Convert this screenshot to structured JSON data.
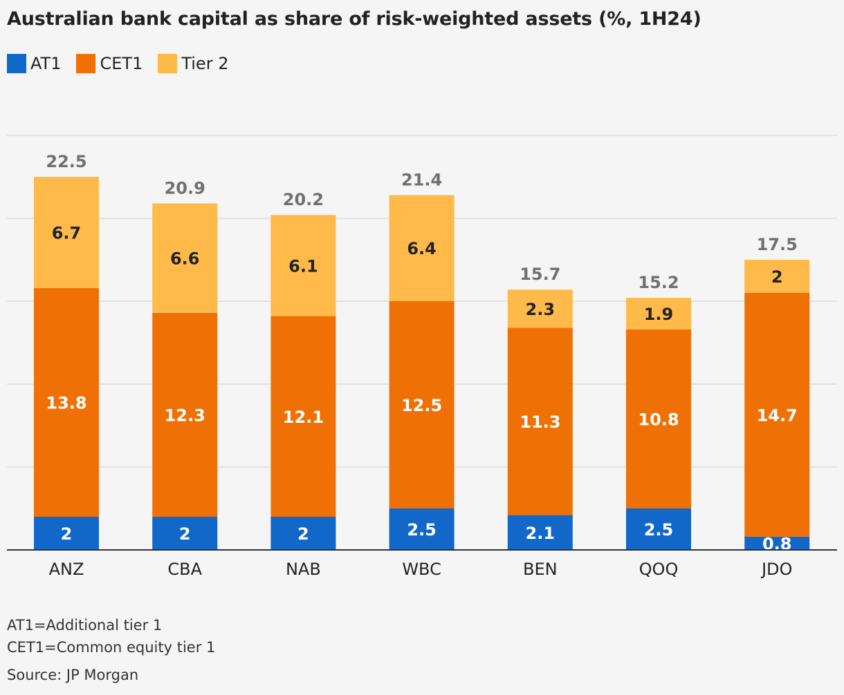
{
  "chart_data": {
    "type": "bar",
    "stacked": true,
    "title": "Australian bank capital as share of risk-weighted assets (%, 1H24)",
    "categories": [
      "ANZ",
      "CBA",
      "NAB",
      "WBC",
      "BEN",
      "QOQ",
      "JDO"
    ],
    "series": [
      {
        "name": "AT1",
        "color": "#1168c9",
        "values": [
          2,
          2,
          2,
          2.5,
          2.1,
          2.5,
          0.8
        ]
      },
      {
        "name": "CET1",
        "color": "#ef7106",
        "values": [
          13.8,
          12.3,
          12.1,
          12.5,
          11.3,
          10.8,
          14.7
        ]
      },
      {
        "name": "Tier 2",
        "color": "#ffba4a",
        "values": [
          6.7,
          6.6,
          6.1,
          6.4,
          2.3,
          1.9,
          2
        ]
      }
    ],
    "totals": [
      22.5,
      20.9,
      20.2,
      21.4,
      15.7,
      15.2,
      17.5
    ],
    "xlabel": "",
    "ylabel": "",
    "ylim": [
      0,
      25
    ],
    "y_gridlines": [
      0,
      5,
      10,
      15,
      20,
      25
    ],
    "y_tick_labels_shown": false,
    "grid": true,
    "legend_position": "top-left",
    "data_labels": true,
    "notes": [
      "AT1=Additional tier 1",
      "CET1=Common equity tier 1"
    ],
    "source": "Source: JP Morgan"
  }
}
